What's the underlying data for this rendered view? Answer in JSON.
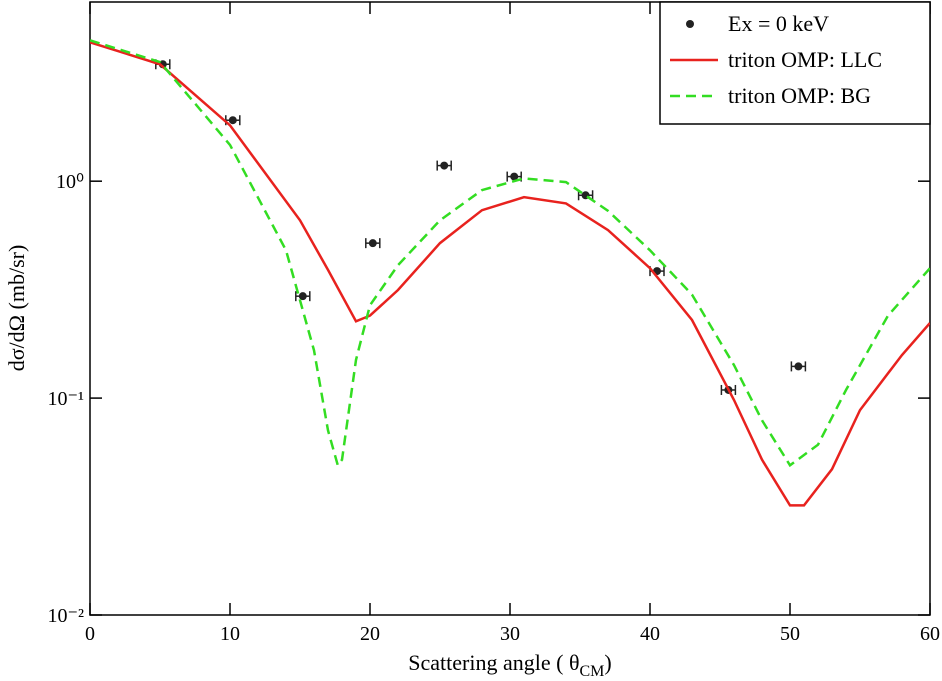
{
  "chart_data": {
    "type": "line",
    "x_label": {
      "text": "Scattering angle ( θ",
      "subscript": "CM",
      "end": ")"
    },
    "y_label": "dσ/dΩ (mb/sr)",
    "xlim": [
      0,
      60
    ],
    "xticks": [
      0,
      10,
      20,
      30,
      40,
      50,
      60
    ],
    "ylim": [
      0.01,
      6.7
    ],
    "log_y": true,
    "yticks": [
      {
        "value": 0.01,
        "label": "10⁻²"
      },
      {
        "value": 0.1,
        "label": "10⁻¹"
      },
      {
        "value": 1,
        "label": "10⁰"
      }
    ],
    "legend": "upper right",
    "series": [
      {
        "name": "Ex = 0 keV",
        "color": "#222222",
        "mode": "markers",
        "x": [
          5.2,
          10.2,
          15.2,
          20.2,
          25.3,
          30.3,
          35.4,
          40.5,
          45.6,
          50.6
        ],
        "values": [
          3.46,
          1.91,
          0.295,
          0.518,
          1.18,
          1.05,
          0.861,
          0.385,
          0.109,
          0.14
        ],
        "x_errors": [
          0.5,
          0.5,
          0.5,
          0.5,
          0.5,
          0.5,
          0.5,
          0.5,
          0.5,
          0.5
        ]
      },
      {
        "name": "triton OMP: LLC",
        "color": "#e8221e",
        "mode": "solid",
        "x": [
          0,
          5,
          10,
          15,
          17,
          19,
          20,
          22,
          25,
          28,
          31,
          34,
          37,
          40,
          43,
          46,
          48,
          50,
          51,
          53,
          55,
          58,
          60
        ],
        "values": [
          4.37,
          3.46,
          1.81,
          0.66,
          0.39,
          0.226,
          0.24,
          0.315,
          0.518,
          0.735,
          0.844,
          0.79,
          0.595,
          0.397,
          0.229,
          0.098,
          0.052,
          0.032,
          0.032,
          0.047,
          0.088,
          0.158,
          0.222
        ]
      },
      {
        "name": "triton OMP: BG",
        "color": "#33dd22",
        "mode": "dashed",
        "x": [
          0,
          5,
          10,
          14,
          16,
          17,
          17.7,
          18,
          19,
          20,
          22,
          25,
          28,
          31,
          34,
          37,
          40,
          43,
          46,
          48,
          50,
          52,
          54,
          57,
          60
        ],
        "values": [
          4.46,
          3.54,
          1.47,
          0.48,
          0.166,
          0.071,
          0.049,
          0.052,
          0.15,
          0.268,
          0.41,
          0.66,
          0.91,
          1.03,
          0.99,
          0.73,
          0.48,
          0.3,
          0.142,
          0.079,
          0.049,
          0.061,
          0.109,
          0.24,
          0.397
        ]
      }
    ]
  }
}
